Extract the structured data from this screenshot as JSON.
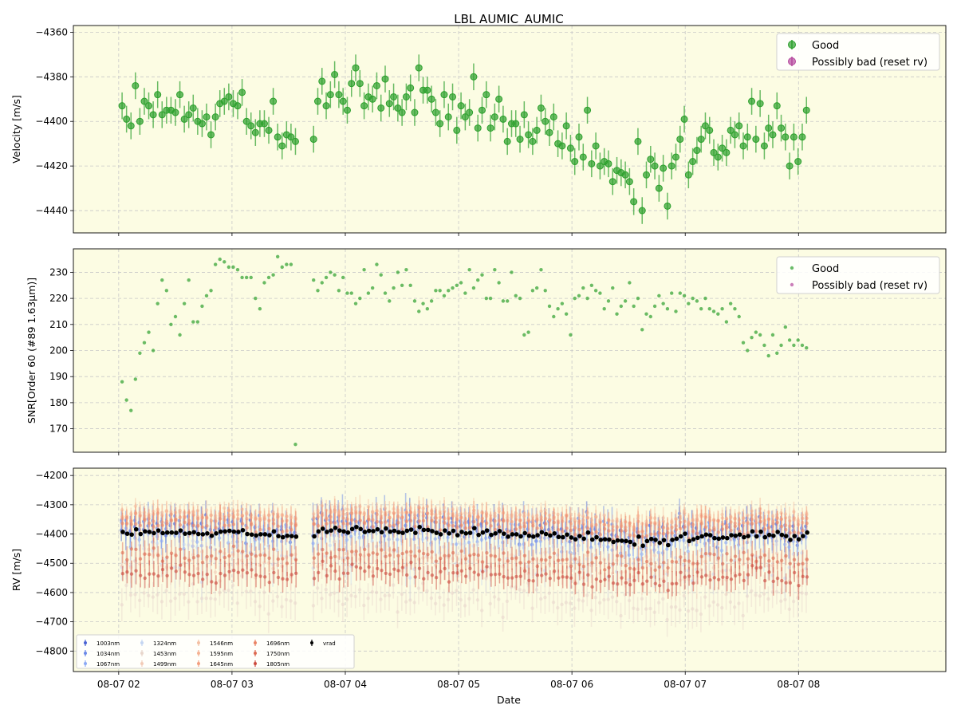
{
  "figure": {
    "title": "LBL AUMIC_AUMIC",
    "xlabel": "Date",
    "x_tick_labels": [
      "08-07 02",
      "08-07 03",
      "08-07 04",
      "08-07 05",
      "08-07 06",
      "08-07 07",
      "08-07 08"
    ]
  },
  "colors": {
    "panel_bg": "#fcfce3",
    "good": "#2ca02c",
    "bad": "#b5489e",
    "vrad": "#000000",
    "grid": "#c8c8c8"
  },
  "chart_data": [
    {
      "type": "scatter",
      "panel": "velocity",
      "ylabel": "Velocity [m/s]",
      "xlim_hours": [
        1.6,
        9.3
      ],
      "ylim": [
        -4450,
        -4357
      ],
      "yticks": [
        -4360,
        -4380,
        -4400,
        -4420,
        -4440
      ],
      "grid": true,
      "legend_position": "upper right",
      "legend": [
        "Good",
        "Possibly bad (reset rv)"
      ],
      "x_time_range": [
        "08-07 02:00",
        "08-07 08:05"
      ],
      "series": [
        {
          "name": "Good",
          "color": "#2ca02c",
          "y": [
            -4393,
            -4399,
            -4402,
            -4384,
            -4400,
            -4391,
            -4393,
            -4397,
            -4388,
            -4397,
            -4395,
            -4395,
            -4396,
            -4388,
            -4399,
            -4397,
            -4394,
            -4400,
            -4401,
            -4398,
            -4406,
            -4398,
            -4392,
            -4391,
            -4389,
            -4392,
            -4393,
            -4387,
            -4400,
            -4402,
            -4405,
            -4401,
            -4401,
            -4404,
            -4391,
            -4407,
            -4411,
            -4406,
            -4407,
            -4409,
            -4408,
            -4391,
            -4382,
            -4393,
            -4388,
            -4379,
            -4388,
            -4391,
            -4395,
            -4383,
            -4376,
            -4383,
            -4393,
            -4389,
            -4390,
            -4384,
            -4394,
            -4381,
            -4392,
            -4389,
            -4394,
            -4396,
            -4389,
            -4385,
            -4396,
            -4376,
            -4386,
            -4386,
            -4390,
            -4396,
            -4401,
            -4388,
            -4398,
            -4389,
            -4404,
            -4393,
            -4398,
            -4396,
            -4380,
            -4403,
            -4395,
            -4388,
            -4403,
            -4398,
            -4390,
            -4399,
            -4409,
            -4401,
            -4401,
            -4408,
            -4397,
            -4406,
            -4409,
            -4404,
            -4394,
            -4400,
            -4405,
            -4398,
            -4410,
            -4411,
            -4402,
            -4412,
            -4418,
            -4407,
            -4416,
            -4395,
            -4419,
            -4411,
            -4420,
            -4418,
            -4419,
            -4427,
            -4422,
            -4423,
            -4424,
            -4427,
            -4436,
            -4409,
            -4440,
            -4424,
            -4417,
            -4420,
            -4430,
            -4421,
            -4438,
            -4420,
            -4416,
            -4408,
            -4399,
            -4424,
            -4418,
            -4413,
            -4408,
            -4402,
            -4404,
            -4414,
            -4416,
            -4412,
            -4414,
            -4404,
            -4406,
            -4402,
            -4411,
            -4407,
            -4391,
            -4408,
            -4392,
            -4411,
            -4403,
            -4406,
            -4393,
            -4403,
            -4407,
            -4420,
            -4407,
            -4418,
            -4407,
            -4395
          ],
          "err": 6
        },
        {
          "name": "Possibly bad (reset rv)",
          "color": "#b5489e",
          "y": []
        }
      ]
    },
    {
      "type": "scatter",
      "panel": "snr",
      "ylabel": "SNR[Order 60 (#89 1.63μm)]",
      "xlim_hours": [
        1.6,
        9.3
      ],
      "ylim": [
        161,
        239
      ],
      "yticks": [
        170,
        180,
        190,
        200,
        210,
        220,
        230
      ],
      "grid": true,
      "legend_position": "upper right",
      "legend": [
        "Good",
        "Possibly bad (reset rv)"
      ],
      "series": [
        {
          "name": "Good",
          "color": "#2ca02c",
          "y": [
            188,
            181,
            177,
            189,
            199,
            203,
            207,
            200,
            218,
            227,
            223,
            210,
            213,
            206,
            218,
            227,
            211,
            211,
            217,
            221,
            223,
            233,
            235,
            234,
            232,
            232,
            231,
            228,
            228,
            228,
            220,
            216,
            226,
            228,
            229,
            236,
            232,
            233,
            233,
            164,
            227,
            223,
            226,
            228,
            230,
            229,
            223,
            228,
            222,
            222,
            218,
            220,
            231,
            222,
            224,
            233,
            229,
            222,
            219,
            224,
            230,
            225,
            231,
            225,
            219,
            215,
            218,
            216,
            219,
            223,
            223,
            221,
            223,
            224,
            225,
            226,
            222,
            231,
            224,
            227,
            229,
            220,
            220,
            231,
            226,
            219,
            219,
            230,
            221,
            220,
            206,
            207,
            223,
            224,
            231,
            223,
            217,
            213,
            216,
            218,
            214,
            206,
            220,
            221,
            224,
            220,
            225,
            223,
            222,
            216,
            219,
            224,
            214,
            217,
            219,
            226,
            217,
            220,
            208,
            214,
            213,
            217,
            221,
            218,
            216,
            222,
            215,
            222,
            221,
            218,
            220,
            219,
            216,
            220,
            216,
            215,
            214,
            216,
            211,
            218,
            216,
            213,
            203,
            200,
            205,
            207,
            206,
            202,
            198,
            206,
            199,
            202,
            209,
            204,
            202,
            204,
            202,
            201
          ],
          "err": 0
        },
        {
          "name": "Possibly bad (reset rv)",
          "color": "#b5489e",
          "y": []
        }
      ]
    },
    {
      "type": "scatter",
      "panel": "rv_per_band",
      "ylabel": "RV [m/s]",
      "xlim_hours": [
        1.6,
        9.3
      ],
      "ylim": [
        -4870,
        -4175
      ],
      "yticks": [
        -4200,
        -4300,
        -4400,
        -4500,
        -4600,
        -4700,
        -4800
      ],
      "grid": true,
      "legend_position": "lower left",
      "legend_columns": 5,
      "series": [
        {
          "name": "1003nm",
          "color": "#4a63d3",
          "offset": 20,
          "scatter": 35,
          "err": 30,
          "alpha": 0.6
        },
        {
          "name": "1034nm",
          "color": "#6b89e8",
          "offset": 30,
          "scatter": 35,
          "err": 30,
          "alpha": 0.6
        },
        {
          "name": "1067nm",
          "color": "#8ca9f5",
          "offset": -10,
          "scatter": 40,
          "err": 30,
          "alpha": 0.6
        },
        {
          "name": "1324nm",
          "color": "#c4d5f2",
          "offset": -70,
          "scatter": 60,
          "err": 40,
          "alpha": 0.55
        },
        {
          "name": "1453nm",
          "color": "#e8d6cc",
          "offset": -220,
          "scatter": 40,
          "err": 35,
          "alpha": 0.55
        },
        {
          "name": "1499nm",
          "color": "#f2cbb7",
          "offset": -100,
          "scatter": 40,
          "err": 30,
          "alpha": 0.55
        },
        {
          "name": "1546nm",
          "color": "#f4c0a4",
          "offset": 70,
          "scatter": 10,
          "err": 20,
          "alpha": 0.6
        },
        {
          "name": "1595nm",
          "color": "#f5b293",
          "offset": 60,
          "scatter": 12,
          "err": 20,
          "alpha": 0.6
        },
        {
          "name": "1645nm",
          "color": "#f49f80",
          "offset": 50,
          "scatter": 12,
          "err": 20,
          "alpha": 0.6
        },
        {
          "name": "1696nm",
          "color": "#ea8466",
          "offset": 25,
          "scatter": 15,
          "err": 25,
          "alpha": 0.6
        },
        {
          "name": "1750nm",
          "color": "#dd6a52",
          "offset": -80,
          "scatter": 20,
          "err": 25,
          "alpha": 0.6
        },
        {
          "name": "1805nm",
          "color": "#cc4a3e",
          "offset": -140,
          "scatter": 20,
          "err": 25,
          "alpha": 0.6
        },
        {
          "name": "vrad",
          "color": "#000000",
          "offset": 0,
          "scatter": 0,
          "err": 3,
          "alpha": 1.0
        }
      ]
    }
  ]
}
